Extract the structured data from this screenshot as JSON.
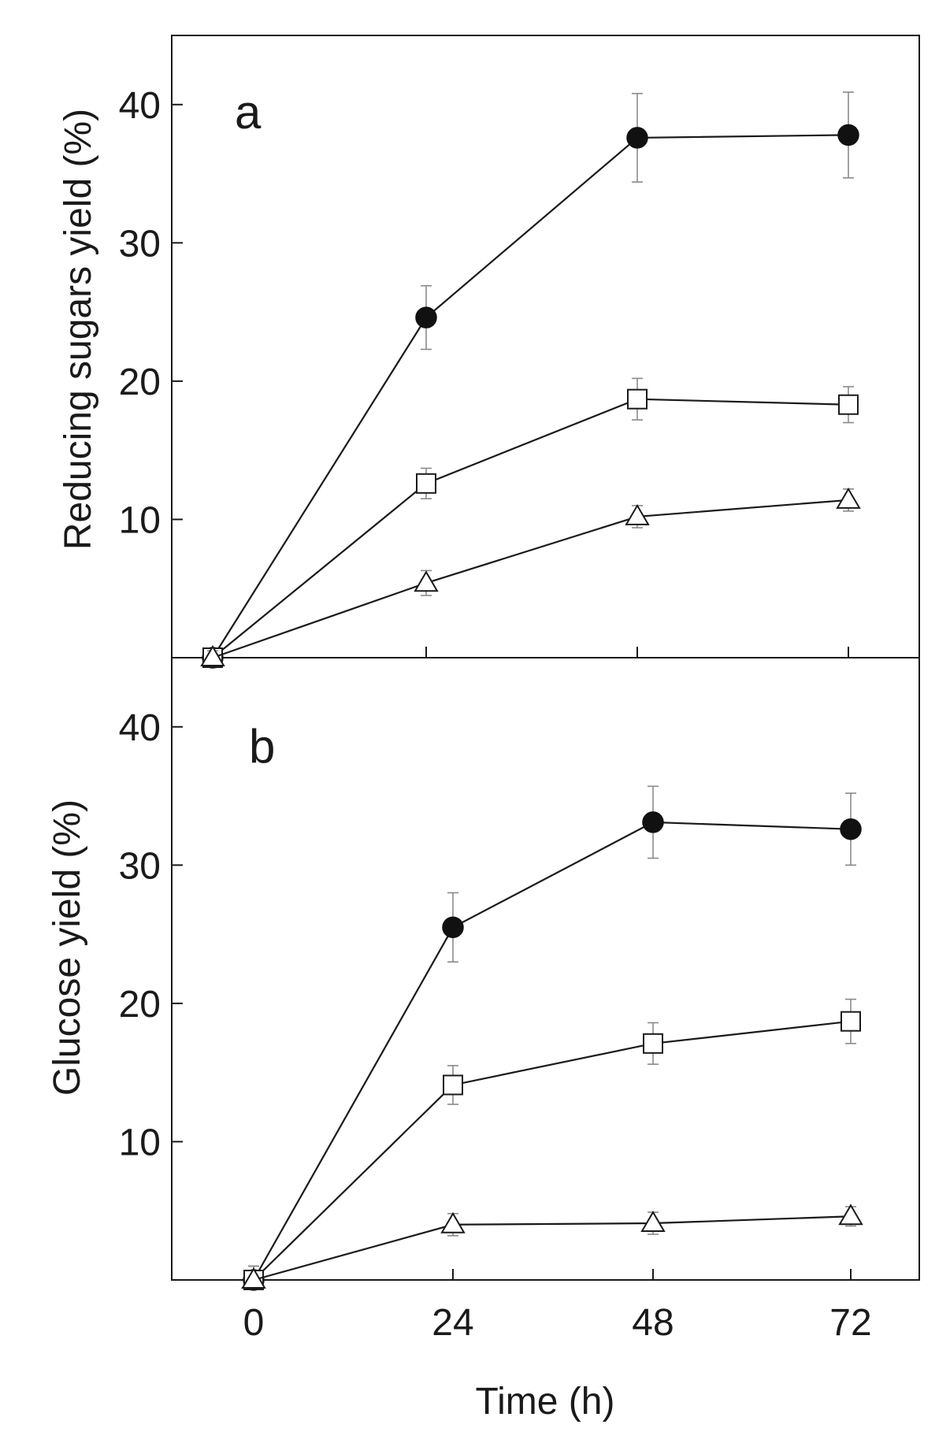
{
  "chart_data": [
    {
      "type": "line",
      "panel": "a",
      "xlabel": "",
      "ylabel": "Reducing sugars yield (%)",
      "x": [
        0,
        24,
        48,
        72
      ],
      "ylim": [
        0,
        45
      ],
      "yticks": [
        10,
        20,
        30,
        40
      ],
      "series": [
        {
          "name": "filled circles",
          "marker": "circle-filled",
          "values": [
            0,
            24.6,
            37.6,
            37.8
          ],
          "errors": [
            0.5,
            2.3,
            3.2,
            3.1
          ]
        },
        {
          "name": "open squares",
          "marker": "square-open",
          "values": [
            0,
            12.6,
            18.7,
            18.3
          ],
          "errors": [
            0.5,
            1.1,
            1.5,
            1.3
          ]
        },
        {
          "name": "open triangles",
          "marker": "triangle-open",
          "values": [
            0,
            5.4,
            10.2,
            11.4
          ],
          "errors": [
            0.5,
            0.9,
            0.8,
            0.8
          ]
        }
      ]
    },
    {
      "type": "line",
      "panel": "b",
      "xlabel": "Time (h)",
      "ylabel": "Glucose yield (%)",
      "x": [
        0,
        24,
        48,
        72
      ],
      "xticks": [
        0,
        24,
        48,
        72
      ],
      "ylim": [
        0,
        45
      ],
      "yticks": [
        10,
        20,
        30,
        40
      ],
      "series": [
        {
          "name": "filled circles",
          "marker": "circle-filled",
          "values": [
            0,
            25.5,
            33.1,
            32.6
          ],
          "errors": [
            1.0,
            2.5,
            2.6,
            2.6
          ]
        },
        {
          "name": "open squares",
          "marker": "square-open",
          "values": [
            0,
            14.1,
            17.1,
            18.7
          ],
          "errors": [
            1.0,
            1.4,
            1.5,
            1.6
          ]
        },
        {
          "name": "open triangles",
          "marker": "triangle-open",
          "values": [
            0,
            4.0,
            4.1,
            4.6
          ],
          "errors": [
            1.0,
            0.8,
            0.8,
            0.7
          ]
        }
      ]
    }
  ]
}
